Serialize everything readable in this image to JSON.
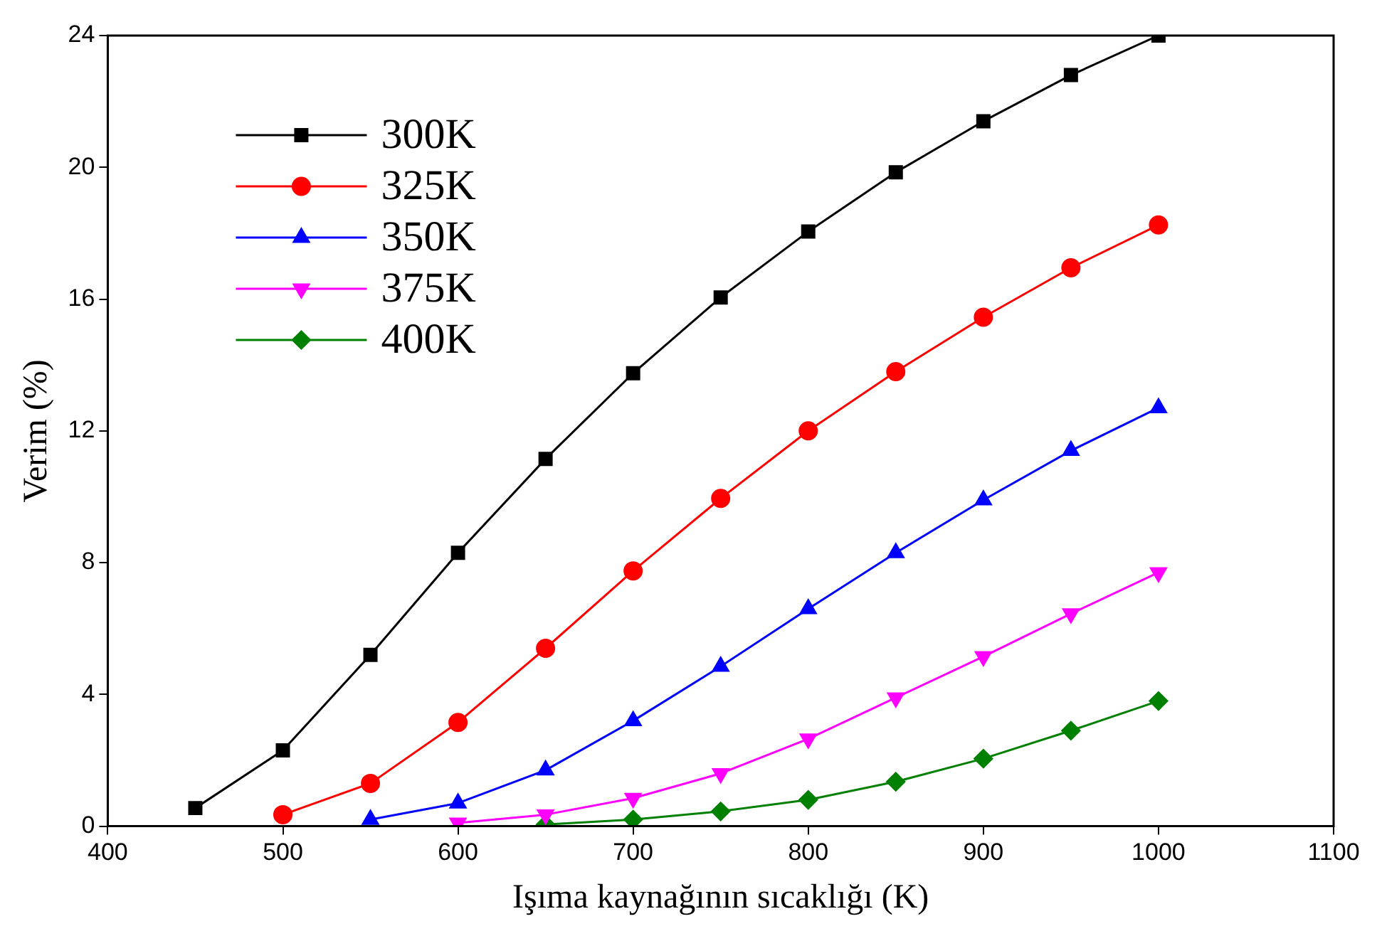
{
  "chart_data": {
    "type": "line",
    "xlabel": "Işıma kaynağının sıcaklığı (K)",
    "ylabel": "Verim (%)",
    "xlim": [
      400,
      1100
    ],
    "xticks": [
      400,
      500,
      600,
      700,
      800,
      900,
      1000,
      1100
    ],
    "ylim": [
      0,
      24
    ],
    "yticks": [
      0,
      4,
      8,
      12,
      16,
      20,
      24
    ],
    "grid": false,
    "legend": "top left",
    "line_style": "solid",
    "series": [
      {
        "name": "300K",
        "color": "#000000",
        "marker": "square",
        "x": [
          450,
          500,
          550,
          600,
          650,
          700,
          750,
          800,
          850,
          900,
          950,
          1000
        ],
        "values": [
          0.55,
          2.3,
          5.2,
          8.3,
          11.15,
          13.75,
          16.05,
          18.05,
          19.85,
          21.4,
          22.8,
          24.0
        ]
      },
      {
        "name": "325K",
        "color": "#ff0000",
        "marker": "circle",
        "x": [
          500,
          550,
          600,
          650,
          700,
          750,
          800,
          850,
          900,
          950,
          1000
        ],
        "values": [
          0.35,
          1.3,
          3.15,
          5.4,
          7.75,
          9.95,
          12.0,
          13.8,
          15.45,
          16.95,
          18.25
        ]
      },
      {
        "name": "350K",
        "color": "#0000ff",
        "marker": "triangle",
        "x": [
          550,
          600,
          650,
          700,
          750,
          800,
          850,
          900,
          950,
          1000
        ],
        "values": [
          0.2,
          0.7,
          1.7,
          3.2,
          4.85,
          6.6,
          8.3,
          9.9,
          11.4,
          12.7
        ]
      },
      {
        "name": "375K",
        "color": "#ff00ff",
        "marker": "triangle-down",
        "x": [
          600,
          650,
          700,
          750,
          800,
          850,
          900,
          950,
          1000
        ],
        "values": [
          0.1,
          0.35,
          0.85,
          1.6,
          2.65,
          3.9,
          5.15,
          6.45,
          7.7
        ]
      },
      {
        "name": "400K",
        "color": "#008000",
        "marker": "diamond",
        "x": [
          650,
          700,
          750,
          800,
          850,
          900,
          950,
          1000
        ],
        "values": [
          0.05,
          0.2,
          0.45,
          0.8,
          1.35,
          2.05,
          2.9,
          3.8
        ]
      }
    ]
  }
}
